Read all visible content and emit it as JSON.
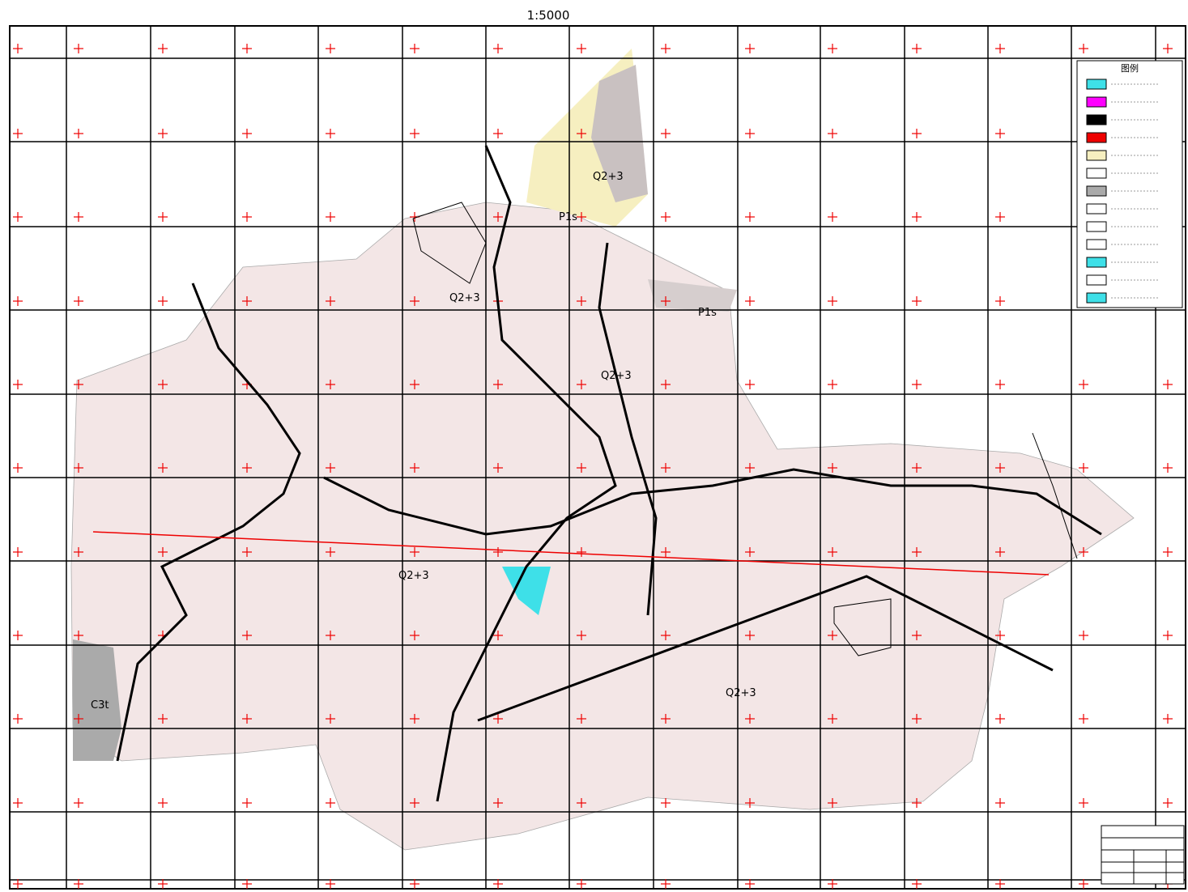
{
  "header": {
    "scale": "1:5000"
  },
  "legend": {
    "title": "图例"
  },
  "labels": [
    {
      "text": "Q2+3"
    },
    {
      "text": "P1s"
    },
    {
      "text": "Q2+3"
    },
    {
      "text": "P1s"
    },
    {
      "text": "Q2+3"
    },
    {
      "text": "Q2+3"
    },
    {
      "text": "Q2+3"
    },
    {
      "text": "C3t"
    }
  ]
}
